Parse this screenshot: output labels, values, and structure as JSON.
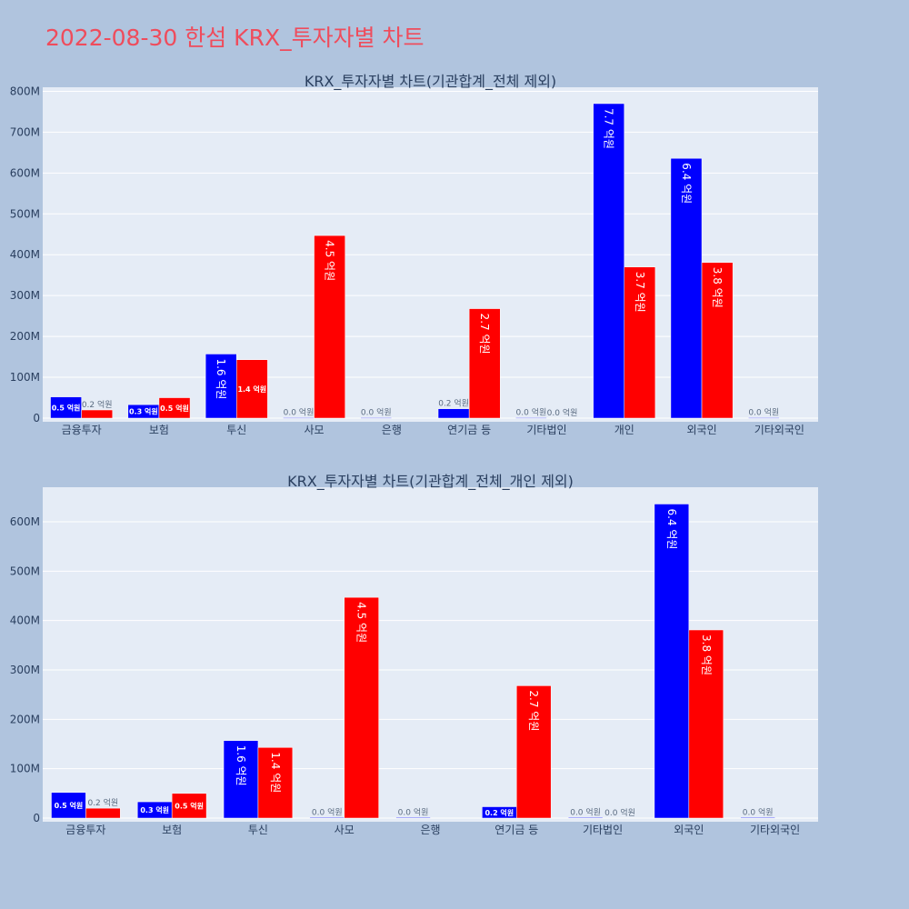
{
  "page_title": "2022-08-30 한섬 KRX_투자자별 차트",
  "colors": {
    "buy": "#0000ff",
    "sell": "#ff0000",
    "plot_bg": "#e5ecf6",
    "page_bg": "#b0c4de",
    "title": "#ef4c5c"
  },
  "chart_data": [
    {
      "type": "bar",
      "title": "KRX_투자자별 차트(기관합계_전체 제외)",
      "categories": [
        "금융투자",
        "보험",
        "투신",
        "사모",
        "은행",
        "연기금 등",
        "기타법인",
        "개인",
        "외국인",
        "기타외국인"
      ],
      "series": [
        {
          "values": [
            52000000,
            33000000,
            157000000,
            1000000,
            1000000,
            23000000,
            1000000,
            770000000,
            636000000,
            1000000
          ],
          "labels": [
            "0.5 억원",
            "0.3 억원",
            "1.6 억원",
            "0.0 억원",
            "0.0 억원",
            "0.2 억원",
            "0.0 억원",
            "7.7 억원",
            "6.4 억원",
            "0.0 억원"
          ]
        },
        {
          "values": [
            20000000,
            50000000,
            143000000,
            447000000,
            0,
            268000000,
            0,
            370000000,
            381000000,
            0
          ],
          "labels": [
            "0.2 억원",
            "0.5 억원",
            "1.4 억원",
            "4.5 억원",
            "",
            "2.7 억원",
            "0.0 억원",
            "3.7 억원",
            "3.8 억원",
            ""
          ]
        }
      ],
      "ylim": [
        0,
        810000000
      ],
      "yticks": [
        0,
        100000000,
        200000000,
        300000000,
        400000000,
        500000000,
        600000000,
        700000000,
        800000000
      ],
      "yticklabels": [
        "0",
        "100M",
        "200M",
        "300M",
        "400M",
        "500M",
        "600M",
        "700M",
        "800M"
      ],
      "grid": true
    },
    {
      "type": "bar",
      "title": "KRX_투자자별 차트(기관합계_전체_개인 제외)",
      "categories": [
        "금융투자",
        "보험",
        "투신",
        "사모",
        "은행",
        "연기금 등",
        "기타법인",
        "외국인",
        "기타외국인"
      ],
      "series": [
        {
          "values": [
            52000000,
            33000000,
            157000000,
            1000000,
            1000000,
            23000000,
            1000000,
            636000000,
            1000000
          ],
          "labels": [
            "0.5 억원",
            "0.3 억원",
            "1.6 억원",
            "0.0 억원",
            "0.0 억원",
            "0.2 억원",
            "0.0 억원",
            "6.4 억원",
            "0.0 억원"
          ]
        },
        {
          "values": [
            20000000,
            50000000,
            143000000,
            447000000,
            0,
            268000000,
            0,
            381000000,
            0
          ],
          "labels": [
            "0.2 억원",
            "0.5 억원",
            "1.4 억원",
            "4.5 억원",
            "",
            "2.7 억원",
            "0.0 억원",
            "3.8 억원",
            ""
          ]
        }
      ],
      "ylim": [
        0,
        670000000
      ],
      "yticks": [
        0,
        100000000,
        200000000,
        300000000,
        400000000,
        500000000,
        600000000
      ],
      "yticklabels": [
        "0",
        "100M",
        "200M",
        "300M",
        "400M",
        "500M",
        "600M"
      ],
      "grid": true
    }
  ]
}
